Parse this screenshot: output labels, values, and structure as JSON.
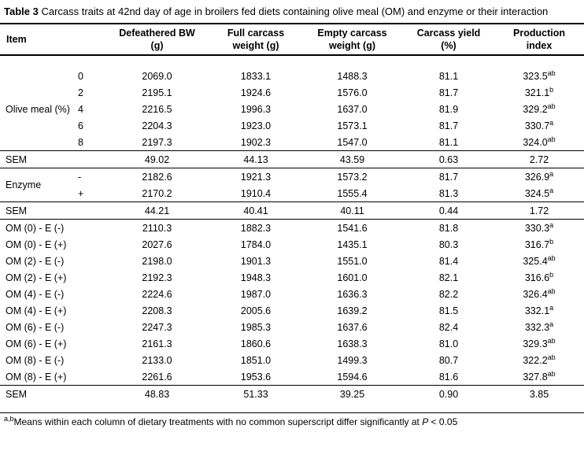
{
  "caption": {
    "label": "Table 3",
    "text": " Carcass traits at 42nd day of age in broilers fed diets containing olive meal (OM) and enzyme or their interaction"
  },
  "columns": {
    "item": "Item",
    "defeathered_bw": "Defeathered BW\n(g)",
    "full_carcass": "Full carcass\nweight (g)",
    "empty_carcass": "Empty carcass\nweight (g)",
    "carcass_yield": "Carcass yield\n(%)",
    "production_index": "Production\nindex"
  },
  "olive_meal": {
    "group_label": "Olive meal (%)",
    "rows": [
      {
        "level": "0",
        "defeathered_bw": "2069.0",
        "full_carcass": "1833.1",
        "empty_carcass": "1488.3",
        "carcass_yield": "81.1",
        "production_index": "323.5",
        "sup": "ab"
      },
      {
        "level": "2",
        "defeathered_bw": "2195.1",
        "full_carcass": "1924.6",
        "empty_carcass": "1576.0",
        "carcass_yield": "81.7",
        "production_index": "321.1",
        "sup": "b"
      },
      {
        "level": "4",
        "defeathered_bw": "2216.5",
        "full_carcass": "1996.3",
        "empty_carcass": "1637.0",
        "carcass_yield": "81.9",
        "production_index": "329.2",
        "sup": "ab"
      },
      {
        "level": "6",
        "defeathered_bw": "2204.3",
        "full_carcass": "1923.0",
        "empty_carcass": "1573.1",
        "carcass_yield": "81.7",
        "production_index": "330.7",
        "sup": "a"
      },
      {
        "level": "8",
        "defeathered_bw": "2197.3",
        "full_carcass": "1902.3",
        "empty_carcass": "1547.0",
        "carcass_yield": "81.1",
        "production_index": "324.0",
        "sup": "ab"
      }
    ]
  },
  "sem_olive": {
    "label": "SEM",
    "defeathered_bw": "49.02",
    "full_carcass": "44.13",
    "empty_carcass": "43.59",
    "carcass_yield": "0.63",
    "production_index": "2.72"
  },
  "enzyme": {
    "group_label": "Enzyme",
    "rows": [
      {
        "level": "-",
        "defeathered_bw": "2182.6",
        "full_carcass": "1921.3",
        "empty_carcass": "1573.2",
        "carcass_yield": "81.7",
        "production_index": "326.9",
        "sup": "a"
      },
      {
        "level": "+",
        "defeathered_bw": "2170.2",
        "full_carcass": "1910.4",
        "empty_carcass": "1555.4",
        "carcass_yield": "81.3",
        "production_index": "324.5",
        "sup": "a"
      }
    ]
  },
  "sem_enzyme": {
    "label": "SEM",
    "defeathered_bw": "44.21",
    "full_carcass": "40.41",
    "empty_carcass": "40.11",
    "carcass_yield": "0.44",
    "production_index": "1.72"
  },
  "interaction": {
    "rows": [
      {
        "label": "OM (0) - E (-)",
        "defeathered_bw": "2110.3",
        "full_carcass": "1882.3",
        "empty_carcass": "1541.6",
        "carcass_yield": "81.8",
        "production_index": "330.3",
        "sup": "a"
      },
      {
        "label": "OM (0) - E (+)",
        "defeathered_bw": "2027.6",
        "full_carcass": "1784.0",
        "empty_carcass": "1435.1",
        "carcass_yield": "80.3",
        "production_index": "316.7",
        "sup": "b"
      },
      {
        "label": "OM (2) - E (-)",
        "defeathered_bw": "2198.0",
        "full_carcass": "1901.3",
        "empty_carcass": "1551.0",
        "carcass_yield": "81.4",
        "production_index": "325.4",
        "sup": "ab"
      },
      {
        "label": "OM (2) - E (+)",
        "defeathered_bw": "2192.3",
        "full_carcass": "1948.3",
        "empty_carcass": "1601.0",
        "carcass_yield": "82.1",
        "production_index": "316.6",
        "sup": "b"
      },
      {
        "label": "OM (4) - E (-)",
        "defeathered_bw": "2224.6",
        "full_carcass": "1987.0",
        "empty_carcass": "1636.3",
        "carcass_yield": "82.2",
        "production_index": "326.4",
        "sup": "ab"
      },
      {
        "label": "OM (4) - E (+)",
        "defeathered_bw": "2208.3",
        "full_carcass": "2005.6",
        "empty_carcass": "1639.2",
        "carcass_yield": "81.5",
        "production_index": "332.1",
        "sup": "a"
      },
      {
        "label": "OM (6) - E (-)",
        "defeathered_bw": "2247.3",
        "full_carcass": "1985.3",
        "empty_carcass": "1637.6",
        "carcass_yield": "82.4",
        "production_index": "332.3",
        "sup": "a"
      },
      {
        "label": "OM (6) - E (+)",
        "defeathered_bw": "2161.3",
        "full_carcass": "1860.6",
        "empty_carcass": "1638.3",
        "carcass_yield": "81.0",
        "production_index": "329.3",
        "sup": "ab"
      },
      {
        "label": "OM (8) - E (-)",
        "defeathered_bw": "2133.0",
        "full_carcass": "1851.0",
        "empty_carcass": "1499.3",
        "carcass_yield": "80.7",
        "production_index": "322.2",
        "sup": "ab"
      },
      {
        "label": "OM (8) - E (+)",
        "defeathered_bw": "2261.6",
        "full_carcass": "1953.6",
        "empty_carcass": "1594.6",
        "carcass_yield": "81.6",
        "production_index": "327.8",
        "sup": "ab"
      }
    ]
  },
  "sem_interaction": {
    "label": "SEM",
    "defeathered_bw": "48.83",
    "full_carcass": "51.33",
    "empty_carcass": "39.25",
    "carcass_yield": "0.90",
    "production_index": "3.85"
  },
  "footnote": {
    "sup": "a,b",
    "before_p": "Means within each column of dietary treatments with no common superscript differ significantly at ",
    "p": "P",
    "after_p": " < 0.05"
  }
}
